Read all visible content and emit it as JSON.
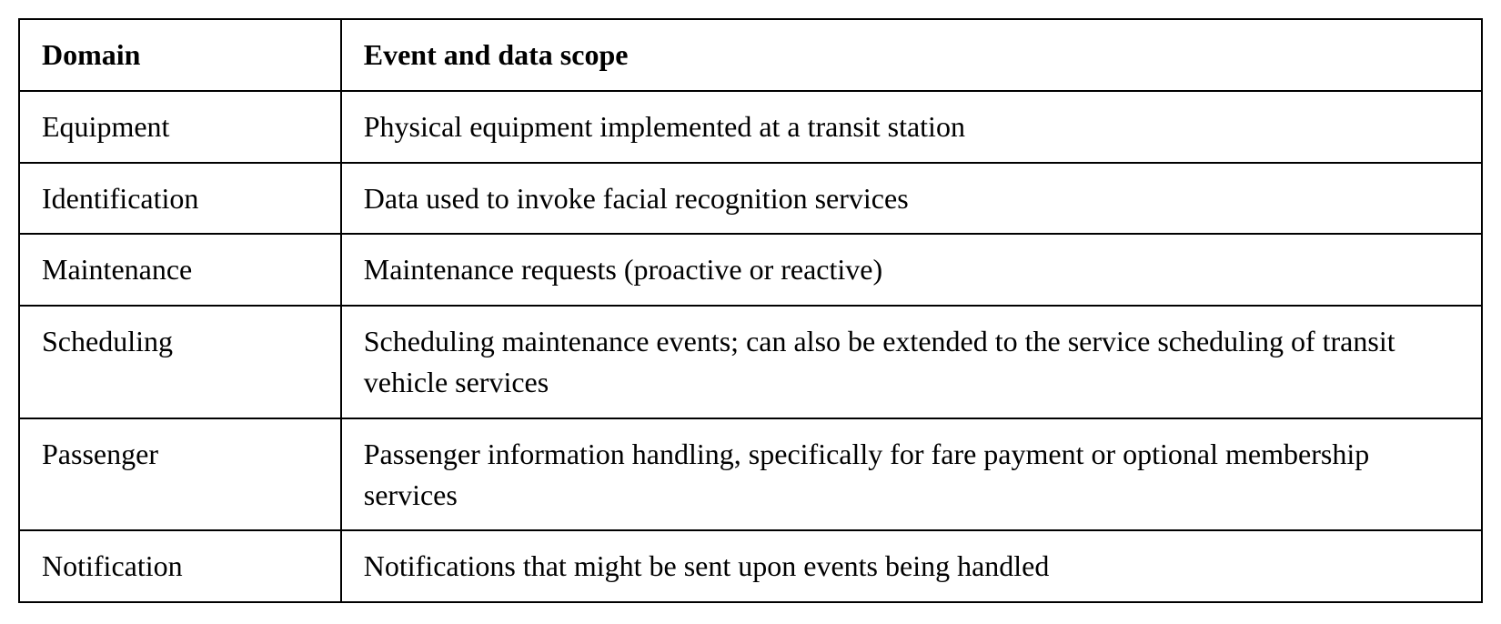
{
  "table": {
    "type": "table",
    "background_color": "#ffffff",
    "border_color": "#000000",
    "border_width": 2,
    "font_family": "Georgia, 'Times New Roman', serif",
    "font_size": 32,
    "text_color": "#000000",
    "header_font_weight": "bold",
    "columns": [
      {
        "key": "domain",
        "label": "Domain",
        "width_pct": 22
      },
      {
        "key": "scope",
        "label": "Event and data scope",
        "width_pct": 78
      }
    ],
    "rows": [
      {
        "domain": "Equipment",
        "scope": "Physical equipment implemented at a transit station"
      },
      {
        "domain": "Identification",
        "scope": "Data used to invoke facial recognition services"
      },
      {
        "domain": "Maintenance",
        "scope": "Maintenance requests (proactive or reactive)"
      },
      {
        "domain": "Scheduling",
        "scope": "Scheduling maintenance events; can also be extended to the service scheduling of transit vehicle services"
      },
      {
        "domain": "Passenger",
        "scope": "Passenger information handling, specifically for fare payment or optional membership services"
      },
      {
        "domain": "Notification",
        "scope": "Notifications that might be sent upon events being handled"
      }
    ]
  }
}
